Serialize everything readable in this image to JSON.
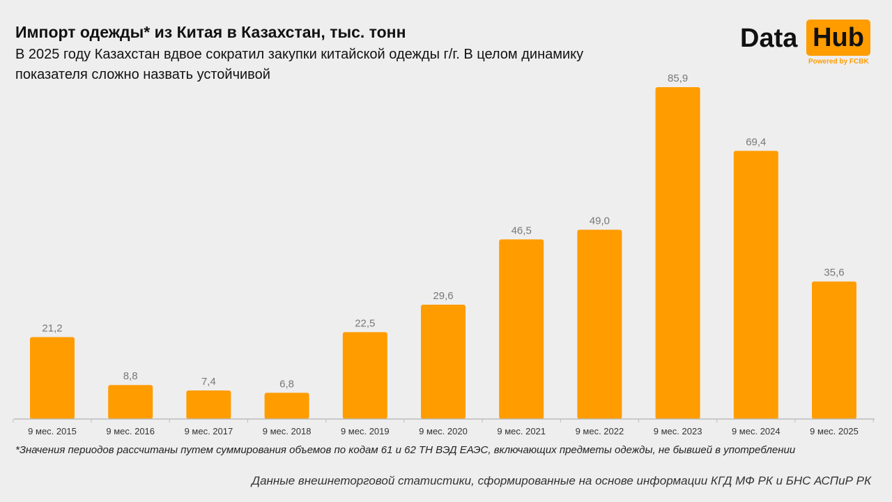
{
  "title": "Импорт одежды* из Китая в Казахстан, тыс. тонн",
  "subtitle": "В 2025 году Казахстан вдвое сократил закупки китайской одежды г/г. В целом динамику показателя сложно назвать устойчивой",
  "logo": {
    "left": "Data",
    "right": "Hub",
    "tagline": "Powered by FCBK"
  },
  "footnote": "*Значения периодов рассчитаны путем суммирования объемов по кодам 61 и 62 ТН ВЭД ЕАЭС, включающих предметы одежды, не бывшей в употреблении",
  "source": "Данные внешнеторговой статистики, сформированные на основе информации КГД МФ РК и БНС АСПиР РК",
  "colors": {
    "bar": "#ff9c00",
    "background": "#eeeeee",
    "label": "#777777"
  },
  "chart_data": {
    "type": "bar",
    "title": "Импорт одежды* из Китая в Казахстан, тыс. тонн",
    "categories": [
      "9 мес. 2015",
      "9 мес. 2016",
      "9 мес. 2017",
      "9 мес. 2018",
      "9 мес. 2019",
      "9 мес. 2020",
      "9 мес. 2021",
      "9 мес. 2022",
      "9 мес. 2023",
      "9 мес. 2024",
      "9 мес. 2025"
    ],
    "values": [
      21.2,
      8.8,
      7.4,
      6.8,
      22.5,
      29.6,
      46.5,
      49.0,
      85.9,
      69.4,
      35.6
    ],
    "data_labels": [
      "21,2",
      "8,8",
      "7,4",
      "6,8",
      "22,5",
      "29,6",
      "46,5",
      "49,0",
      "85,9",
      "69,4",
      "35,6"
    ],
    "ylim": [
      0,
      90
    ],
    "grid": false,
    "legend": "none"
  }
}
